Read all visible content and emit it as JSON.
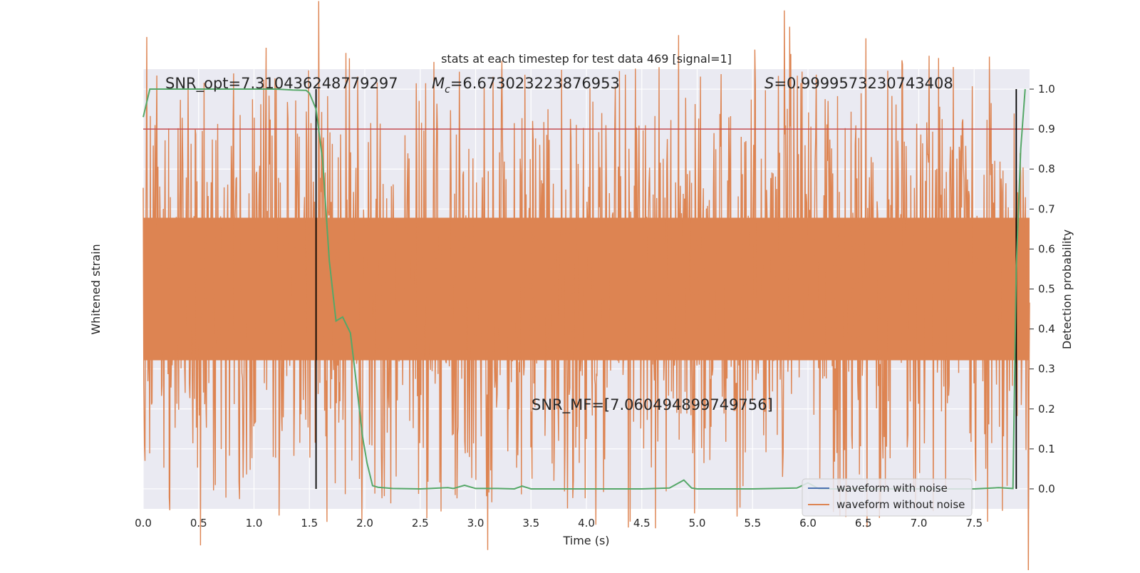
{
  "chart_data": {
    "type": "line",
    "title": "stats at each timestep for test data 469 [signal=1]",
    "xlabel": "Time (s)",
    "ylabel_left": "Whitened strain",
    "ylabel_right": "Detection probability",
    "xlim": [
      0.0,
      8.0
    ],
    "ylim_right": [
      -0.05,
      1.05
    ],
    "xticks": [
      "0.0",
      "0.5",
      "1.0",
      "1.5",
      "2.0",
      "2.5",
      "3.0",
      "3.5",
      "4.0",
      "4.5",
      "5.0",
      "5.5",
      "6.0",
      "6.5",
      "7.0",
      "7.5"
    ],
    "yticks_right": [
      "0.0",
      "0.1",
      "0.2",
      "0.3",
      "0.4",
      "0.5",
      "0.6",
      "0.7",
      "0.8",
      "0.9",
      "1.0"
    ],
    "grid": true,
    "legend_position": "lower-right",
    "annotations": {
      "snr_opt": "SNR_opt=7.310436248779297",
      "mc_symbol": "M",
      "mc_sub": "c",
      "mc_value": "=6.673023223876953",
      "s_symbol": "S",
      "s_value": "=0.9999573230743408",
      "snr_mf": "SNR_MF=[7.060494899749756]"
    },
    "threshold": 0.9,
    "vertical_markers_x": [
      1.56,
      7.88
    ],
    "series": [
      {
        "name": "waveform with noise",
        "color": "#4c72b0"
      },
      {
        "name": "waveform without noise",
        "color": "#dd8452"
      }
    ],
    "detection_probability": {
      "color": "#55a868",
      "x": [
        0.0,
        0.06,
        0.15,
        0.3,
        0.5,
        0.75,
        1.0,
        1.2,
        1.35,
        1.47,
        1.5,
        1.56,
        1.62,
        1.68,
        1.74,
        1.8,
        1.87,
        1.93,
        1.98,
        2.02,
        2.07,
        2.12,
        2.25,
        2.5,
        2.75,
        2.8,
        2.9,
        3.0,
        3.2,
        3.35,
        3.42,
        3.5,
        3.7,
        4.0,
        4.5,
        4.75,
        4.88,
        4.95,
        5.0,
        5.5,
        5.9,
        6.0,
        6.1,
        6.3,
        6.5,
        7.0,
        7.5,
        7.72,
        7.85,
        7.88,
        7.92,
        7.96
      ],
      "y": [
        0.93,
        1.0,
        1.0,
        1.0,
        1.0,
        1.0,
        1.0,
        1.0,
        0.998,
        0.997,
        0.99,
        0.95,
        0.82,
        0.57,
        0.42,
        0.43,
        0.39,
        0.25,
        0.13,
        0.065,
        0.008,
        0.004,
        0.001,
        0.0,
        0.003,
        0.001,
        0.009,
        0.001,
        0.001,
        0.0,
        0.007,
        0.0,
        0.0,
        0.0,
        0.0,
        0.002,
        0.022,
        0.002,
        0.0,
        0.0,
        0.002,
        0.015,
        0.0,
        0.0,
        0.0,
        0.0,
        0.0,
        0.003,
        0.001,
        0.55,
        0.85,
        1.0
      ]
    }
  }
}
